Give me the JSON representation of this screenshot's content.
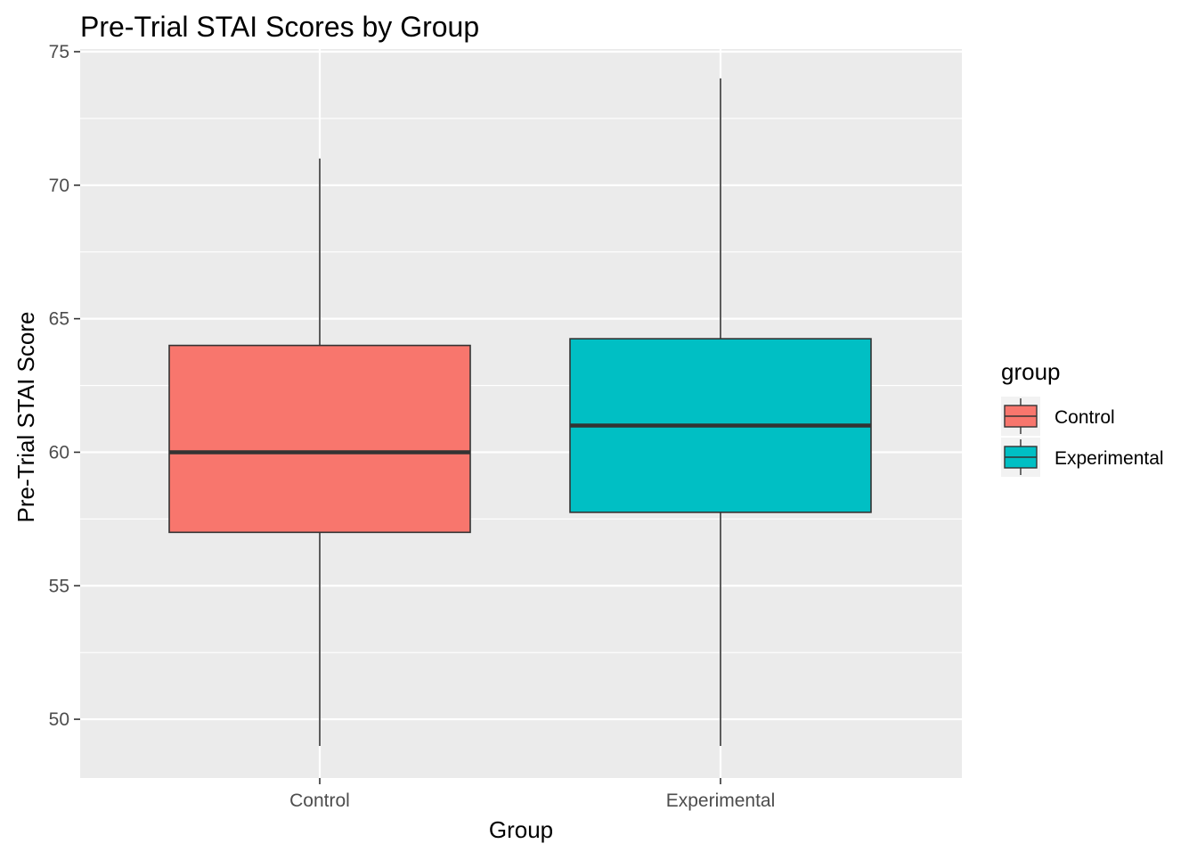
{
  "chart_data": {
    "type": "boxplot",
    "title": "Pre-Trial STAI Scores by Group",
    "xlabel": "Group",
    "ylabel": "Pre-Trial STAI Score",
    "ylim": [
      47.8,
      75.1
    ],
    "yticks": [
      50,
      55,
      60,
      65,
      70,
      75
    ],
    "y_minor_ticks": [
      52.5,
      57.5,
      62.5,
      67.5,
      72.5
    ],
    "grid": true,
    "legend": {
      "title": "group",
      "position": "right"
    },
    "categories": [
      "Control",
      "Experimental"
    ],
    "boxes": [
      {
        "group": "Control",
        "min": 49,
        "q1": 57,
        "median": 60,
        "q3": 64,
        "max": 71,
        "color": "#F8766D"
      },
      {
        "group": "Experimental",
        "min": 49,
        "q1": 57.75,
        "median": 61,
        "q3": 64.25,
        "max": 74,
        "color": "#00BFC4"
      }
    ]
  }
}
